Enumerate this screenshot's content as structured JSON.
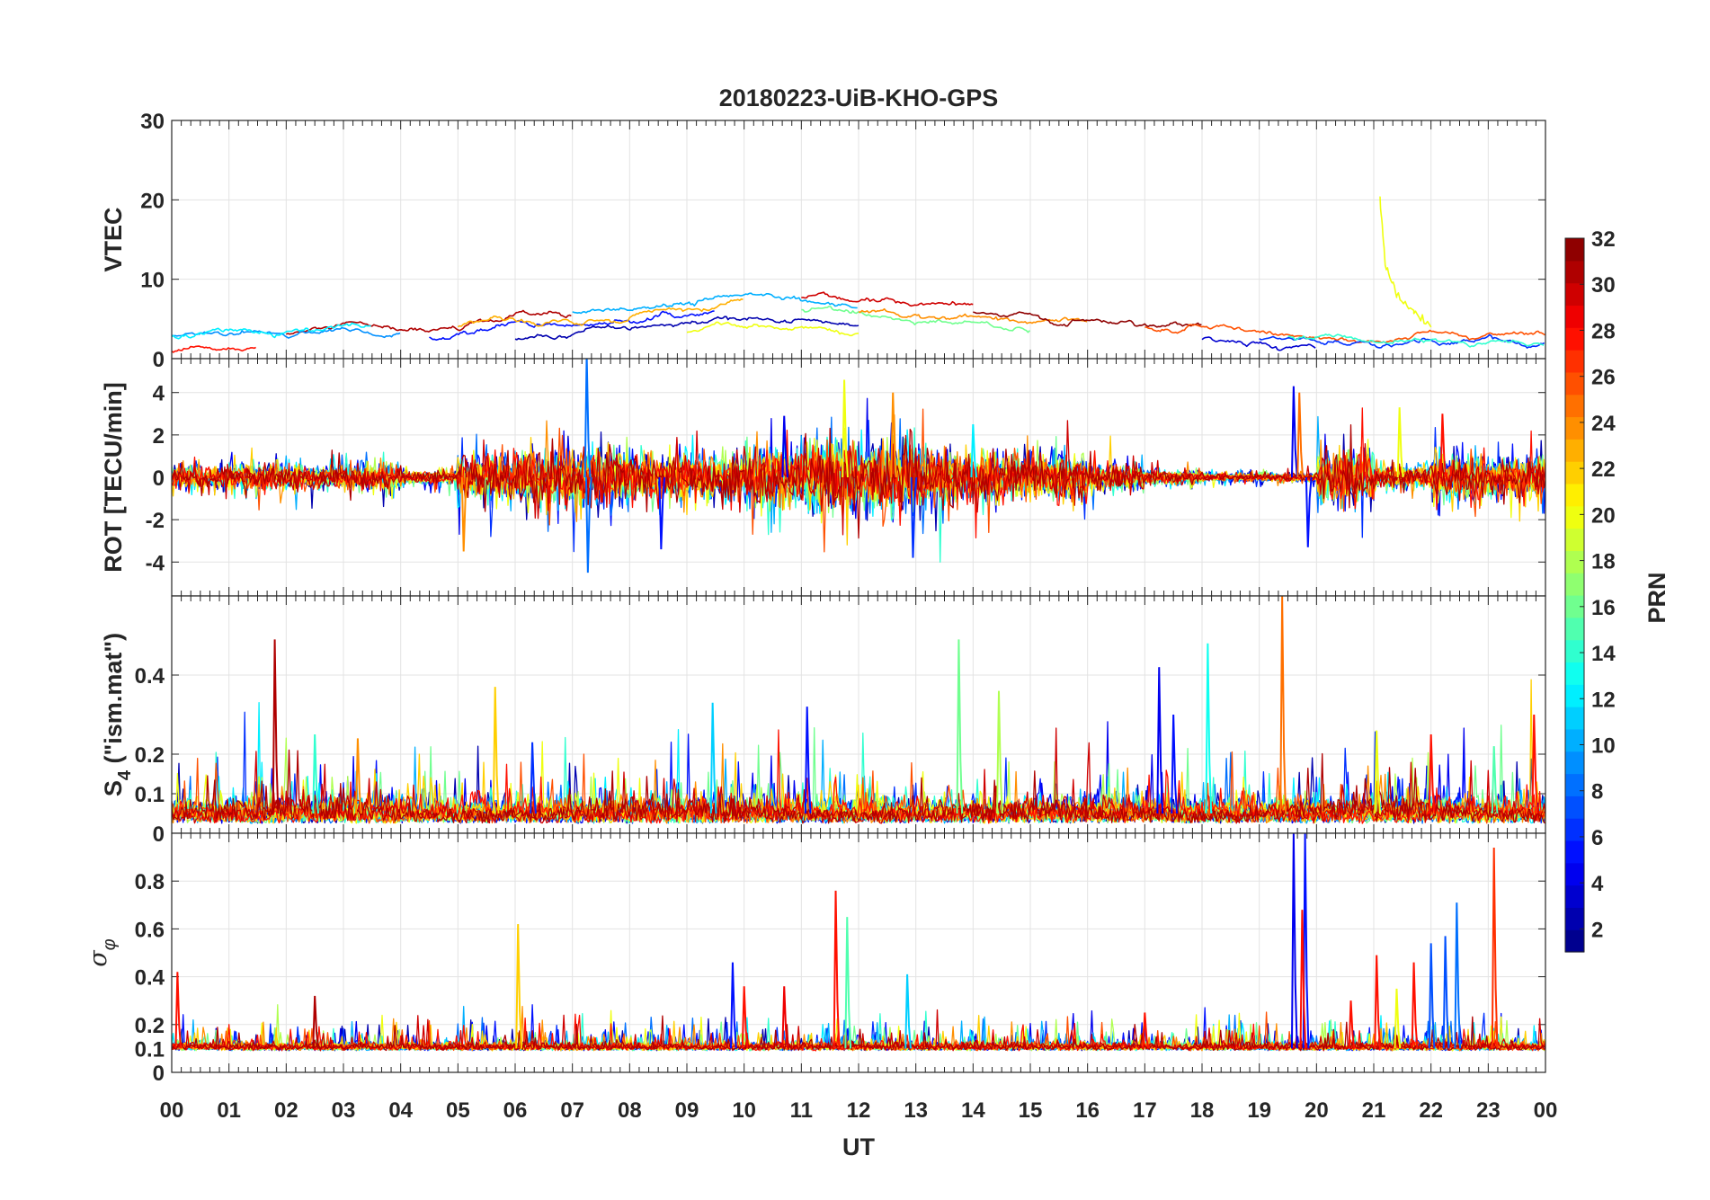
{
  "chart_data": {
    "type": "line",
    "title": "20180223-UiB-KHO-GPS",
    "xlabel": "UT",
    "xlim": [
      0,
      24
    ],
    "x_tick_labels": [
      "00",
      "01",
      "02",
      "03",
      "04",
      "05",
      "06",
      "07",
      "08",
      "09",
      "10",
      "11",
      "12",
      "13",
      "14",
      "15",
      "16",
      "17",
      "18",
      "19",
      "20",
      "21",
      "22",
      "23",
      "00"
    ],
    "grid": true,
    "colorbar": {
      "label": "PRN",
      "colormap": "jet",
      "range": [
        1,
        32
      ],
      "levels": 32,
      "tick_labels": [
        "2",
        "4",
        "6",
        "8",
        "10",
        "12",
        "14",
        "16",
        "18",
        "20",
        "22",
        "24",
        "26",
        "28",
        "30",
        "32"
      ],
      "placement": "right"
    },
    "panels": [
      {
        "id": "vtec",
        "ylabel": "VTEC",
        "ylim": [
          0,
          30
        ],
        "y_ticks": [
          0,
          10,
          20,
          30
        ],
        "y_tick_labels": [
          "0",
          "10",
          "20",
          "30"
        ],
        "mean_profile_hourly": [
          2.2,
          2.5,
          2.6,
          3,
          2.5,
          3,
          3.8,
          4.2,
          5,
          5.6,
          6,
          6,
          5.5,
          5,
          5,
          4.5,
          4.2,
          4,
          3.6,
          3,
          2.6,
          2,
          2.8,
          2.5,
          2
        ],
        "series": [
          {
            "prn": 31,
            "start": 2,
            "end": 7,
            "offset": 0.5
          },
          {
            "prn": 9,
            "start": 0,
            "end": 4,
            "offset": 0.8
          },
          {
            "prn": 12,
            "start": 0,
            "end": 3.5,
            "offset": 0.6
          },
          {
            "prn": 28,
            "start": 0,
            "end": 1.5,
            "offset": -1
          },
          {
            "prn": 5,
            "start": 4.5,
            "end": 9.5,
            "offset": 0
          },
          {
            "prn": 23,
            "start": 5,
            "end": 10,
            "offset": 0.8
          },
          {
            "prn": 2,
            "start": 6,
            "end": 12,
            "offset": -1.2
          },
          {
            "prn": 10,
            "start": 7,
            "end": 12,
            "offset": 1.5
          },
          {
            "prn": 20,
            "start": 9,
            "end": 12,
            "offset": -2.5
          },
          {
            "prn": 30,
            "start": 11,
            "end": 14,
            "offset": 1.5
          },
          {
            "prn": 16,
            "start": 11,
            "end": 15,
            "offset": 0
          },
          {
            "prn": 24,
            "start": 12,
            "end": 16,
            "offset": 0.5
          },
          {
            "prn": 32,
            "start": 14,
            "end": 18,
            "offset": 0.8
          },
          {
            "prn": 26,
            "start": 17,
            "end": 24,
            "offset": 0
          },
          {
            "prn": 6,
            "start": 19,
            "end": 24,
            "offset": -0.5
          },
          {
            "prn": 14,
            "start": 19.5,
            "end": 24,
            "offset": 0
          },
          {
            "prn": 3,
            "start": 18,
            "end": 20,
            "offset": -1
          }
        ],
        "events": [
          {
            "prn": 20,
            "points": [
              [
                21.1,
                21
              ],
              [
                21.2,
                12
              ],
              [
                21.4,
                8
              ],
              [
                21.7,
                6
              ],
              [
                22,
                4
              ]
            ]
          }
        ]
      },
      {
        "id": "rot",
        "ylabel": "ROT [TECU/min]",
        "ylim": [
          -5.6,
          5.6
        ],
        "y_ticks": [
          -4,
          -2,
          0,
          2,
          4
        ],
        "y_tick_labels": [
          "-4",
          "-2",
          "0",
          "2",
          "4"
        ],
        "noise_amplitude_hourly": [
          0.5,
          0.6,
          0.5,
          0.6,
          0.3,
          1.0,
          1.2,
          1.2,
          1.0,
          1.0,
          1.3,
          1.6,
          1.5,
          1.2,
          1.0,
          1.0,
          0.6,
          0.3,
          0.2,
          0.2,
          1.2,
          0.5,
          1.0,
          0.9
        ],
        "baseline": 0,
        "spikes": [
          {
            "hour": 7.25,
            "value": 5.8,
            "prn": 8
          },
          {
            "hour": 7.27,
            "value": -4.5,
            "prn": 8
          },
          {
            "hour": 11.75,
            "value": 4.6,
            "prn": 20
          },
          {
            "hour": 12.6,
            "value": 4.0,
            "prn": 24
          },
          {
            "hour": 12.95,
            "value": -3.8,
            "prn": 6
          },
          {
            "hour": 8.55,
            "value": -3.4,
            "prn": 5
          },
          {
            "hour": 5.1,
            "value": -3.5,
            "prn": 24
          },
          {
            "hour": 19.6,
            "value": 4.3,
            "prn": 4
          },
          {
            "hour": 19.85,
            "value": -3.3,
            "prn": 5
          },
          {
            "hour": 21.45,
            "value": 3.3,
            "prn": 20
          },
          {
            "hour": 22.2,
            "value": 3.0,
            "prn": 28
          },
          {
            "hour": 19.7,
            "value": 4.0,
            "prn": 25
          },
          {
            "hour": 10.7,
            "value": 2.9,
            "prn": 4
          },
          {
            "hour": 14.0,
            "value": 2.5,
            "prn": 12
          }
        ]
      },
      {
        "id": "s4",
        "ylabel": "S",
        "ylabel_sub": "4",
        "ylabel_suffix": " (\"ism.mat\")",
        "ylim": [
          0,
          0.6
        ],
        "y_ticks": [
          0,
          0.1,
          0.2,
          0.4
        ],
        "y_tick_labels": [
          "0",
          "0.1",
          "0.2",
          "0.4"
        ],
        "baseline": 0.05,
        "noise_amplitude": 0.04,
        "spikes": [
          {
            "hour": 1.8,
            "value": 0.49,
            "prn": 31
          },
          {
            "hour": 5.65,
            "value": 0.37,
            "prn": 22
          },
          {
            "hour": 9.45,
            "value": 0.33,
            "prn": 11
          },
          {
            "hour": 11.1,
            "value": 0.32,
            "prn": 5
          },
          {
            "hour": 13.75,
            "value": 0.49,
            "prn": 16
          },
          {
            "hour": 14.45,
            "value": 0.36,
            "prn": 18
          },
          {
            "hour": 17.25,
            "value": 0.42,
            "prn": 4
          },
          {
            "hour": 18.1,
            "value": 0.48,
            "prn": 13
          },
          {
            "hour": 19.4,
            "value": 0.6,
            "prn": 25
          },
          {
            "hour": 23.8,
            "value": 0.3,
            "prn": 28
          },
          {
            "hour": 2.5,
            "value": 0.25,
            "prn": 14
          },
          {
            "hour": 3.25,
            "value": 0.24,
            "prn": 24
          },
          {
            "hour": 6.3,
            "value": 0.23,
            "prn": 6
          },
          {
            "hour": 17.5,
            "value": 0.3,
            "prn": 5
          },
          {
            "hour": 21.05,
            "value": 0.26,
            "prn": 20
          },
          {
            "hour": 22.0,
            "value": 0.25,
            "prn": 28
          },
          {
            "hour": 23.1,
            "value": 0.22,
            "prn": 15
          }
        ]
      },
      {
        "id": "sigma_phi",
        "ylabel": "σ",
        "ylabel_sub": "φ",
        "ylim": [
          0,
          1
        ],
        "y_ticks": [
          0,
          0.1,
          0.2,
          0.4,
          0.6,
          0.8
        ],
        "y_tick_labels": [
          "0",
          "0.1",
          "0.2",
          "0.4",
          "0.6",
          "0.8"
        ],
        "baseline": 0.1,
        "noise_amplitude": 0.03,
        "spikes": [
          {
            "hour": 0.1,
            "value": 0.42,
            "prn": 28
          },
          {
            "hour": 2.5,
            "value": 0.32,
            "prn": 31
          },
          {
            "hour": 6.05,
            "value": 0.62,
            "prn": 22
          },
          {
            "hour": 9.8,
            "value": 0.46,
            "prn": 5
          },
          {
            "hour": 11.6,
            "value": 0.76,
            "prn": 28
          },
          {
            "hour": 11.8,
            "value": 0.65,
            "prn": 15
          },
          {
            "hour": 12.85,
            "value": 0.41,
            "prn": 11
          },
          {
            "hour": 10.0,
            "value": 0.36,
            "prn": 28
          },
          {
            "hour": 10.7,
            "value": 0.36,
            "prn": 29
          },
          {
            "hour": 19.6,
            "value": 1.0,
            "prn": 4
          },
          {
            "hour": 19.8,
            "value": 1.0,
            "prn": 5
          },
          {
            "hour": 19.75,
            "value": 0.68,
            "prn": 28
          },
          {
            "hour": 20.6,
            "value": 0.3,
            "prn": 28
          },
          {
            "hour": 21.05,
            "value": 0.49,
            "prn": 28
          },
          {
            "hour": 21.7,
            "value": 0.46,
            "prn": 28
          },
          {
            "hour": 22.0,
            "value": 0.54,
            "prn": 7
          },
          {
            "hour": 22.25,
            "value": 0.57,
            "prn": 7
          },
          {
            "hour": 22.45,
            "value": 0.71,
            "prn": 8
          },
          {
            "hour": 23.1,
            "value": 0.94,
            "prn": 27
          },
          {
            "hour": 17.0,
            "value": 0.25,
            "prn": 28
          },
          {
            "hour": 21.4,
            "value": 0.35,
            "prn": 20
          }
        ]
      }
    ],
    "noise_prns": [
      2,
      4,
      5,
      6,
      8,
      10,
      12,
      14,
      16,
      18,
      20,
      22,
      24,
      26,
      28,
      30,
      31
    ]
  }
}
